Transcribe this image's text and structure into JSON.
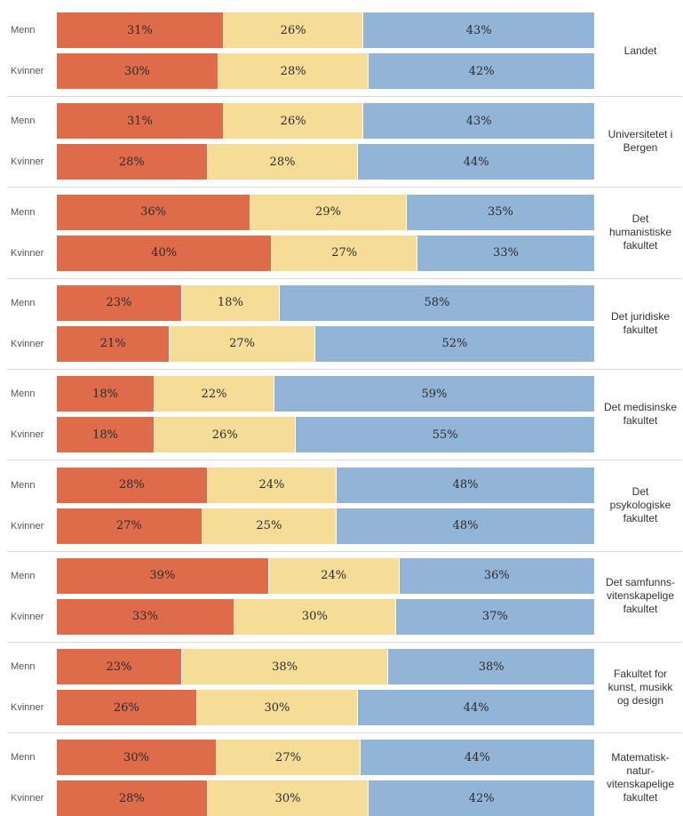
{
  "colors": {
    "segment_1": "#de6b4a",
    "segment_2": "#f5dc97",
    "segment_3": "#92b4d6"
  },
  "chart_data": {
    "type": "bar",
    "orientation": "horizontal",
    "stacked": true,
    "normalized_percent": true,
    "groups": [
      {
        "label_lines": [
          "Landet"
        ],
        "rows": [
          {
            "label": "Menn",
            "values": [
              31,
              26,
              43
            ],
            "labels": [
              "31%",
              "26%",
              "43%"
            ]
          },
          {
            "label": "Kvinner",
            "values": [
              30,
              28,
              42
            ],
            "labels": [
              "30%",
              "28%",
              "42%"
            ]
          }
        ]
      },
      {
        "label_lines": [
          "Universitetet i",
          "Bergen"
        ],
        "rows": [
          {
            "label": "Menn",
            "values": [
              31,
              26,
              43
            ],
            "labels": [
              "31%",
              "26%",
              "43%"
            ]
          },
          {
            "label": "Kvinner",
            "values": [
              28,
              28,
              44
            ],
            "labels": [
              "28%",
              "28%",
              "44%"
            ]
          }
        ]
      },
      {
        "label_lines": [
          "Det",
          "humanistiske",
          "fakultet"
        ],
        "rows": [
          {
            "label": "Menn",
            "values": [
              36,
              29,
              35
            ],
            "labels": [
              "36%",
              "29%",
              "35%"
            ]
          },
          {
            "label": "Kvinner",
            "values": [
              40,
              27,
              33
            ],
            "labels": [
              "40%",
              "27%",
              "33%"
            ]
          }
        ]
      },
      {
        "label_lines": [
          "Det juridiske",
          "fakultet"
        ],
        "rows": [
          {
            "label": "Menn",
            "values": [
              23,
              18,
              58
            ],
            "labels": [
              "23%",
              "18%",
              "58%"
            ]
          },
          {
            "label": "Kvinner",
            "values": [
              21,
              27,
              52
            ],
            "labels": [
              "21%",
              "27%",
              "52%"
            ]
          }
        ]
      },
      {
        "label_lines": [
          "Det medisinske",
          "fakultet"
        ],
        "rows": [
          {
            "label": "Menn",
            "values": [
              18,
              22,
              59
            ],
            "labels": [
              "18%",
              "22%",
              "59%"
            ]
          },
          {
            "label": "Kvinner",
            "values": [
              18,
              26,
              55
            ],
            "labels": [
              "18%",
              "26%",
              "55%"
            ]
          }
        ]
      },
      {
        "label_lines": [
          "Det",
          "psykologiske",
          "fakultet"
        ],
        "rows": [
          {
            "label": "Menn",
            "values": [
              28,
              24,
              48
            ],
            "labels": [
              "28%",
              "24%",
              "48%"
            ]
          },
          {
            "label": "Kvinner",
            "values": [
              27,
              25,
              48
            ],
            "labels": [
              "27%",
              "25%",
              "48%"
            ]
          }
        ]
      },
      {
        "label_lines": [
          "Det samfunns-",
          "vitenskapelige",
          "fakultet"
        ],
        "rows": [
          {
            "label": "Menn",
            "values": [
              39,
              24,
              36
            ],
            "labels": [
              "39%",
              "24%",
              "36%"
            ]
          },
          {
            "label": "Kvinner",
            "values": [
              33,
              30,
              37
            ],
            "labels": [
              "33%",
              "30%",
              "37%"
            ]
          }
        ]
      },
      {
        "label_lines": [
          "Fakultet for",
          "kunst, musikk",
          "og design"
        ],
        "rows": [
          {
            "label": "Menn",
            "values": [
              23,
              38,
              38
            ],
            "labels": [
              "23%",
              "38%",
              "38%"
            ]
          },
          {
            "label": "Kvinner",
            "values": [
              26,
              30,
              44
            ],
            "labels": [
              "26%",
              "30%",
              "44%"
            ]
          }
        ]
      },
      {
        "label_lines": [
          "Matematisk-",
          "natur-",
          "vitenskapelige",
          "fakultet"
        ],
        "rows": [
          {
            "label": "Menn",
            "values": [
              30,
              27,
              44
            ],
            "labels": [
              "30%",
              "27%",
              "44%"
            ]
          },
          {
            "label": "Kvinner",
            "values": [
              28,
              30,
              42
            ],
            "labels": [
              "28%",
              "30%",
              "42%"
            ]
          }
        ]
      }
    ]
  }
}
